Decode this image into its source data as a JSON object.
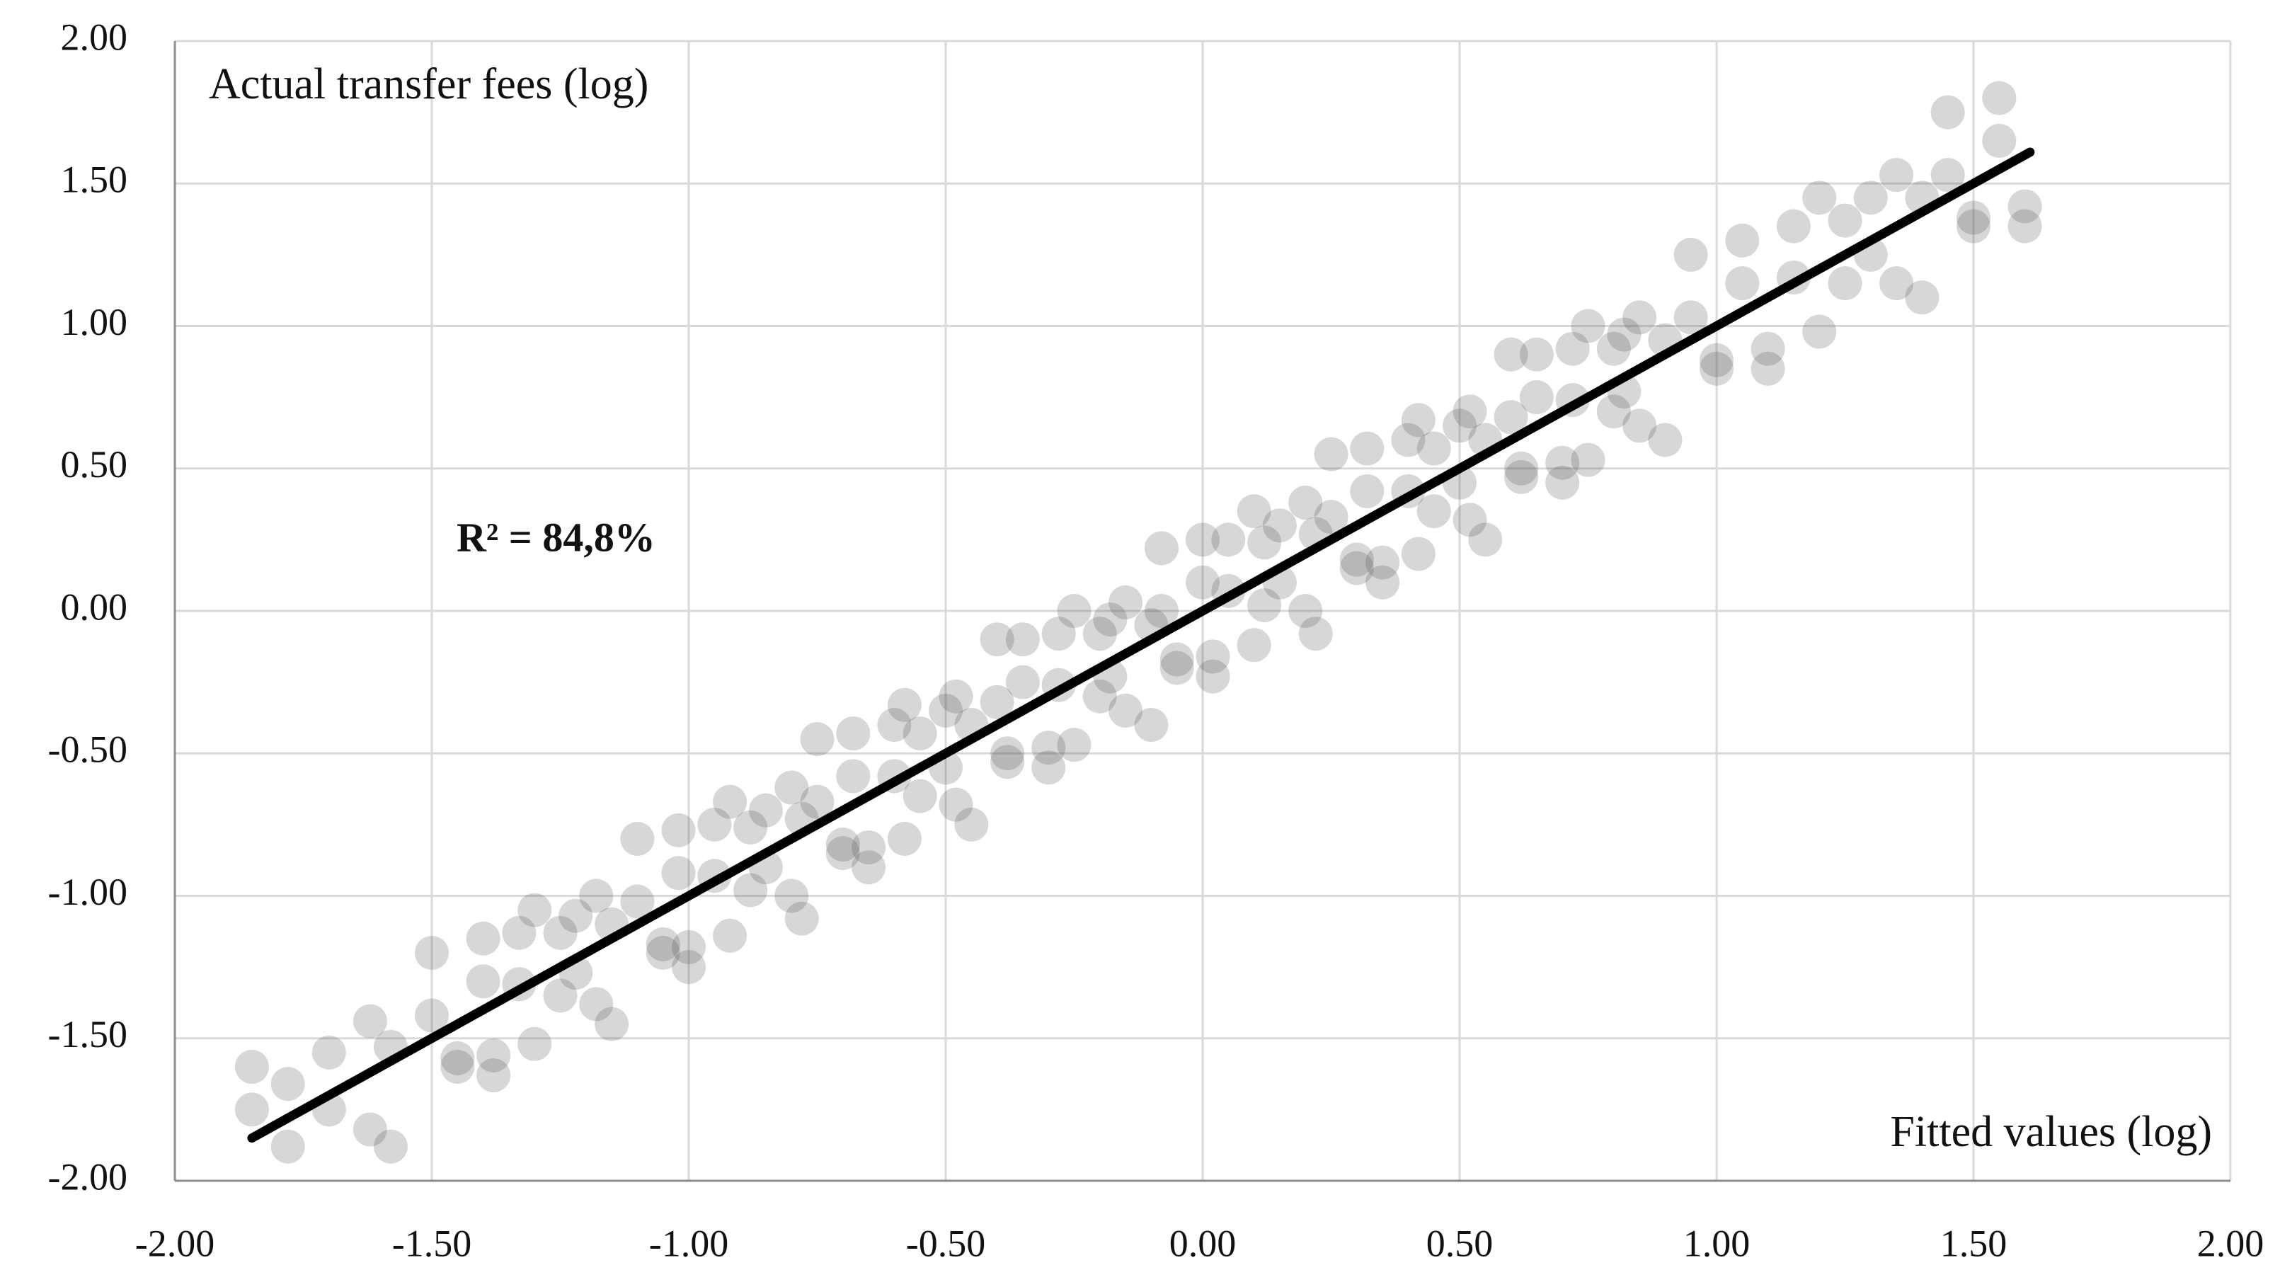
{
  "chart_data": {
    "type": "scatter",
    "y_label": "Actual transfer fees (log)",
    "x_label": "Fitted values (log)",
    "annotation": "R² = 84,8%",
    "xlim": [
      -2,
      2
    ],
    "ylim": [
      -2,
      2
    ],
    "xticks": [
      {
        "value": -2,
        "label": "-2.00"
      },
      {
        "value": -1.5,
        "label": "-1.50"
      },
      {
        "value": -1,
        "label": "-1.00"
      },
      {
        "value": -0.5,
        "label": "-0.50"
      },
      {
        "value": 0,
        "label": "0.00"
      },
      {
        "value": 0.5,
        "label": "0.50"
      },
      {
        "value": 1,
        "label": "1.00"
      },
      {
        "value": 1.5,
        "label": "1.50"
      },
      {
        "value": 2,
        "label": "2.00"
      }
    ],
    "yticks": [
      {
        "value": -2,
        "label": "-2.00"
      },
      {
        "value": -1.5,
        "label": "-1.50"
      },
      {
        "value": -1,
        "label": "-1.00"
      },
      {
        "value": -0.5,
        "label": "-0.50"
      },
      {
        "value": 0,
        "label": "0.00"
      },
      {
        "value": 0.5,
        "label": "0.50"
      },
      {
        "value": 1,
        "label": "1.00"
      },
      {
        "value": 1.5,
        "label": "1.50"
      },
      {
        "value": 2,
        "label": "2.00"
      }
    ],
    "grid": true,
    "points": {
      "color": "#4a4a4a",
      "x": [
        -1.85,
        -1.78,
        -1.7,
        -1.62,
        -1.58,
        -1.5,
        -1.45,
        -1.4,
        -1.38,
        -1.33,
        -1.3,
        -1.25,
        -1.22,
        -1.18,
        -1.15,
        -1.1,
        -1.05,
        -1.02,
        -1.0,
        -0.95,
        -0.92,
        -0.88,
        -0.85,
        -0.8,
        -0.78,
        -0.75,
        -0.7,
        -0.68,
        -0.65,
        -0.6,
        -0.58,
        -0.55,
        -0.5,
        -0.48,
        -0.45,
        -0.4,
        -0.38,
        -0.35,
        -0.3,
        -0.28,
        -0.25,
        -0.2,
        -0.18,
        -0.15,
        -0.1,
        -0.08,
        -0.05,
        0.0,
        0.02,
        0.05,
        0.1,
        0.12,
        0.15,
        0.2,
        0.22,
        0.25,
        0.3,
        0.32,
        0.35,
        0.4,
        0.42,
        0.45,
        0.5,
        0.52,
        0.55,
        0.6,
        0.62,
        0.65,
        0.7,
        0.72,
        0.75,
        0.8,
        0.82,
        0.85,
        0.9,
        0.95,
        1.0,
        1.05,
        1.1,
        1.15,
        1.2,
        1.25,
        1.3,
        1.35,
        1.4,
        1.45,
        1.5,
        1.55,
        1.6,
        -1.85,
        -1.78,
        -1.7,
        -1.62,
        -1.58,
        -1.5,
        -1.45,
        -1.4,
        -1.38,
        -1.33,
        -1.3,
        -1.25,
        -1.22,
        -1.18,
        -1.15,
        -1.1,
        -1.05,
        -1.02,
        -1.0,
        -0.95,
        -0.92,
        -0.88,
        -0.85,
        -0.8,
        -0.78,
        -0.75,
        -0.7,
        -0.68,
        -0.65,
        -0.6,
        -0.58,
        -0.55,
        -0.5,
        -0.48,
        -0.45,
        -0.4,
        -0.38,
        -0.35,
        -0.3,
        -0.28,
        -0.25,
        -0.2,
        -0.18,
        -0.15,
        -0.1,
        -0.08,
        -0.05,
        0.0,
        0.02,
        0.05,
        0.1,
        0.12,
        0.15,
        0.2,
        0.22,
        0.25,
        0.3,
        0.32,
        0.35,
        0.4,
        0.42,
        0.45,
        0.5,
        0.52,
        0.55,
        0.6,
        0.62,
        0.65,
        0.7,
        0.72,
        0.75,
        0.8,
        0.82,
        0.85,
        0.9,
        0.95,
        1.0,
        1.05,
        1.1,
        1.15,
        1.2,
        1.25,
        1.3,
        1.35,
        1.4,
        1.45,
        1.5,
        1.55,
        1.6
      ],
      "y": [
        -1.6,
        -1.88,
        -1.55,
        -1.82,
        -1.53,
        -1.2,
        -1.6,
        -1.3,
        -1.63,
        -1.13,
        -1.05,
        -1.35,
        -1.07,
        -1.38,
        -1.1,
        -0.8,
        -1.2,
        -0.92,
        -1.25,
        -0.75,
        -0.67,
        -0.98,
        -0.7,
        -1.0,
        -0.73,
        -0.45,
        -0.85,
        -0.58,
        -0.9,
        -0.4,
        -0.33,
        -0.65,
        -0.35,
        -0.68,
        -0.4,
        -0.1,
        -0.53,
        -0.25,
        -0.55,
        -0.08,
        0.0,
        -0.3,
        -0.03,
        -0.35,
        -0.05,
        0.22,
        -0.2,
        0.1,
        -0.23,
        0.25,
        0.35,
        0.02,
        0.3,
        0.0,
        0.27,
        0.55,
        0.15,
        0.42,
        0.1,
        0.6,
        0.67,
        0.35,
        0.65,
        0.32,
        0.6,
        0.9,
        0.47,
        0.75,
        0.45,
        0.92,
        1.0,
        0.7,
        0.97,
        0.65,
        0.95,
        1.25,
        0.85,
        1.15,
        0.85,
        1.35,
        1.45,
        1.15,
        1.45,
        1.15,
        1.45,
        1.75,
        1.35,
        1.65,
        1.35,
        -1.75,
        -1.66,
        -1.75,
        -1.44,
        -1.88,
        -1.42,
        -1.57,
        -1.15,
        -1.56,
        -1.31,
        -1.52,
        -1.13,
        -1.27,
        -1.0,
        -1.45,
        -1.02,
        -1.17,
        -0.77,
        -1.18,
        -0.93,
        -1.14,
        -0.76,
        -0.9,
        -0.62,
        -1.08,
        -0.67,
        -0.82,
        -0.43,
        -0.83,
        -0.58,
        -0.8,
        -0.43,
        -0.55,
        -0.3,
        -0.75,
        -0.32,
        -0.5,
        -0.1,
        -0.48,
        -0.26,
        -0.47,
        -0.08,
        -0.23,
        0.03,
        -0.4,
        0.0,
        -0.17,
        0.25,
        -0.16,
        0.07,
        -0.12,
        0.24,
        0.1,
        0.38,
        -0.08,
        0.33,
        0.18,
        0.57,
        0.17,
        0.42,
        0.2,
        0.57,
        0.45,
        0.7,
        0.25,
        0.68,
        0.5,
        0.9,
        0.52,
        0.74,
        0.53,
        0.92,
        0.77,
        1.03,
        0.6,
        1.03,
        0.88,
        1.3,
        0.92,
        1.17,
        0.98,
        1.37,
        1.25,
        1.53,
        1.1,
        1.53,
        1.38,
        1.8,
        1.42
      ]
    },
    "fit_line": {
      "color": "#000000",
      "x": [
        -1.85,
        1.61
      ],
      "y": [
        -1.85,
        1.61
      ]
    }
  }
}
